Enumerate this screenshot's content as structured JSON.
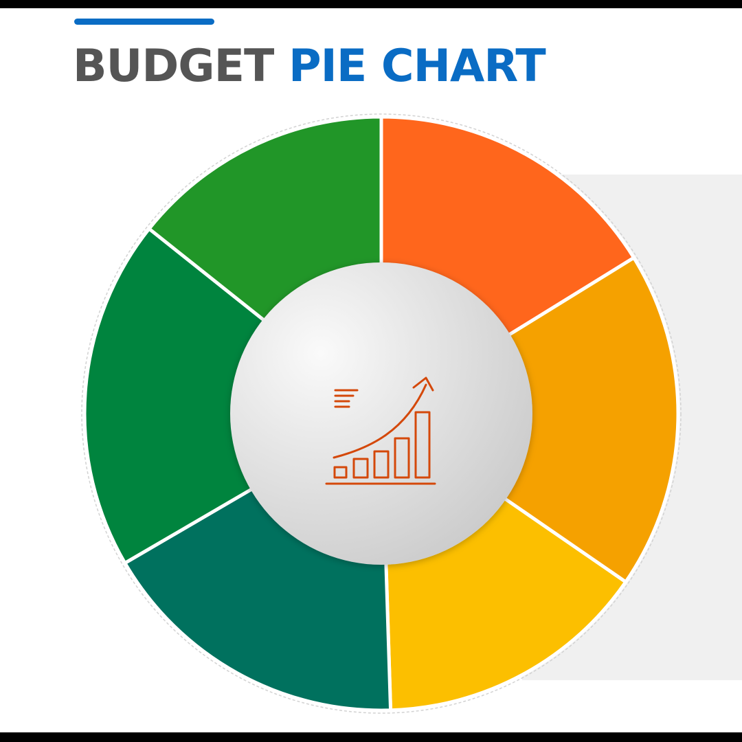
{
  "title": {
    "part1": "BUDGET",
    "part2": "PIE CHART"
  },
  "colors": {
    "title_dark": "#555555",
    "title_blue": "#0a6cc4",
    "accent_line": "#0a6cc4",
    "icon": "#d4480a",
    "hub_light": "#fafafa",
    "hub_dark": "#c8c8c8"
  },
  "center_icon": {
    "name": "growth-bar-chart-icon"
  },
  "chart_data": {
    "type": "pie",
    "style": "donut",
    "categories": [
      "",
      "",
      "",
      "",
      "",
      ""
    ],
    "values": [
      16.2,
      18.4,
      14.9,
      17.1,
      19.1,
      14.3
    ],
    "colors": [
      "#ff661c",
      "#f5a100",
      "#fcbf00",
      "#00715e",
      "#00843e",
      "#219628"
    ]
  }
}
